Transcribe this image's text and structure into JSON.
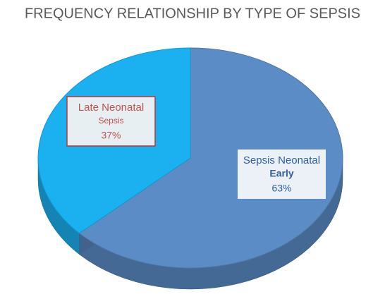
{
  "chart_data": {
    "type": "pie3d",
    "title": "FREQUENCY RELATIONSHIP BY TYPE OF SEPSIS",
    "categories": [
      [
        "Late Neonatal",
        "Sepsis"
      ],
      [
        "Sepsis Neonatal",
        "Early"
      ]
    ],
    "values": [
      37,
      63
    ],
    "value_labels": [
      "37%",
      "63%"
    ],
    "colors": [
      "#1bb0f0",
      "#5b8cc6"
    ]
  }
}
